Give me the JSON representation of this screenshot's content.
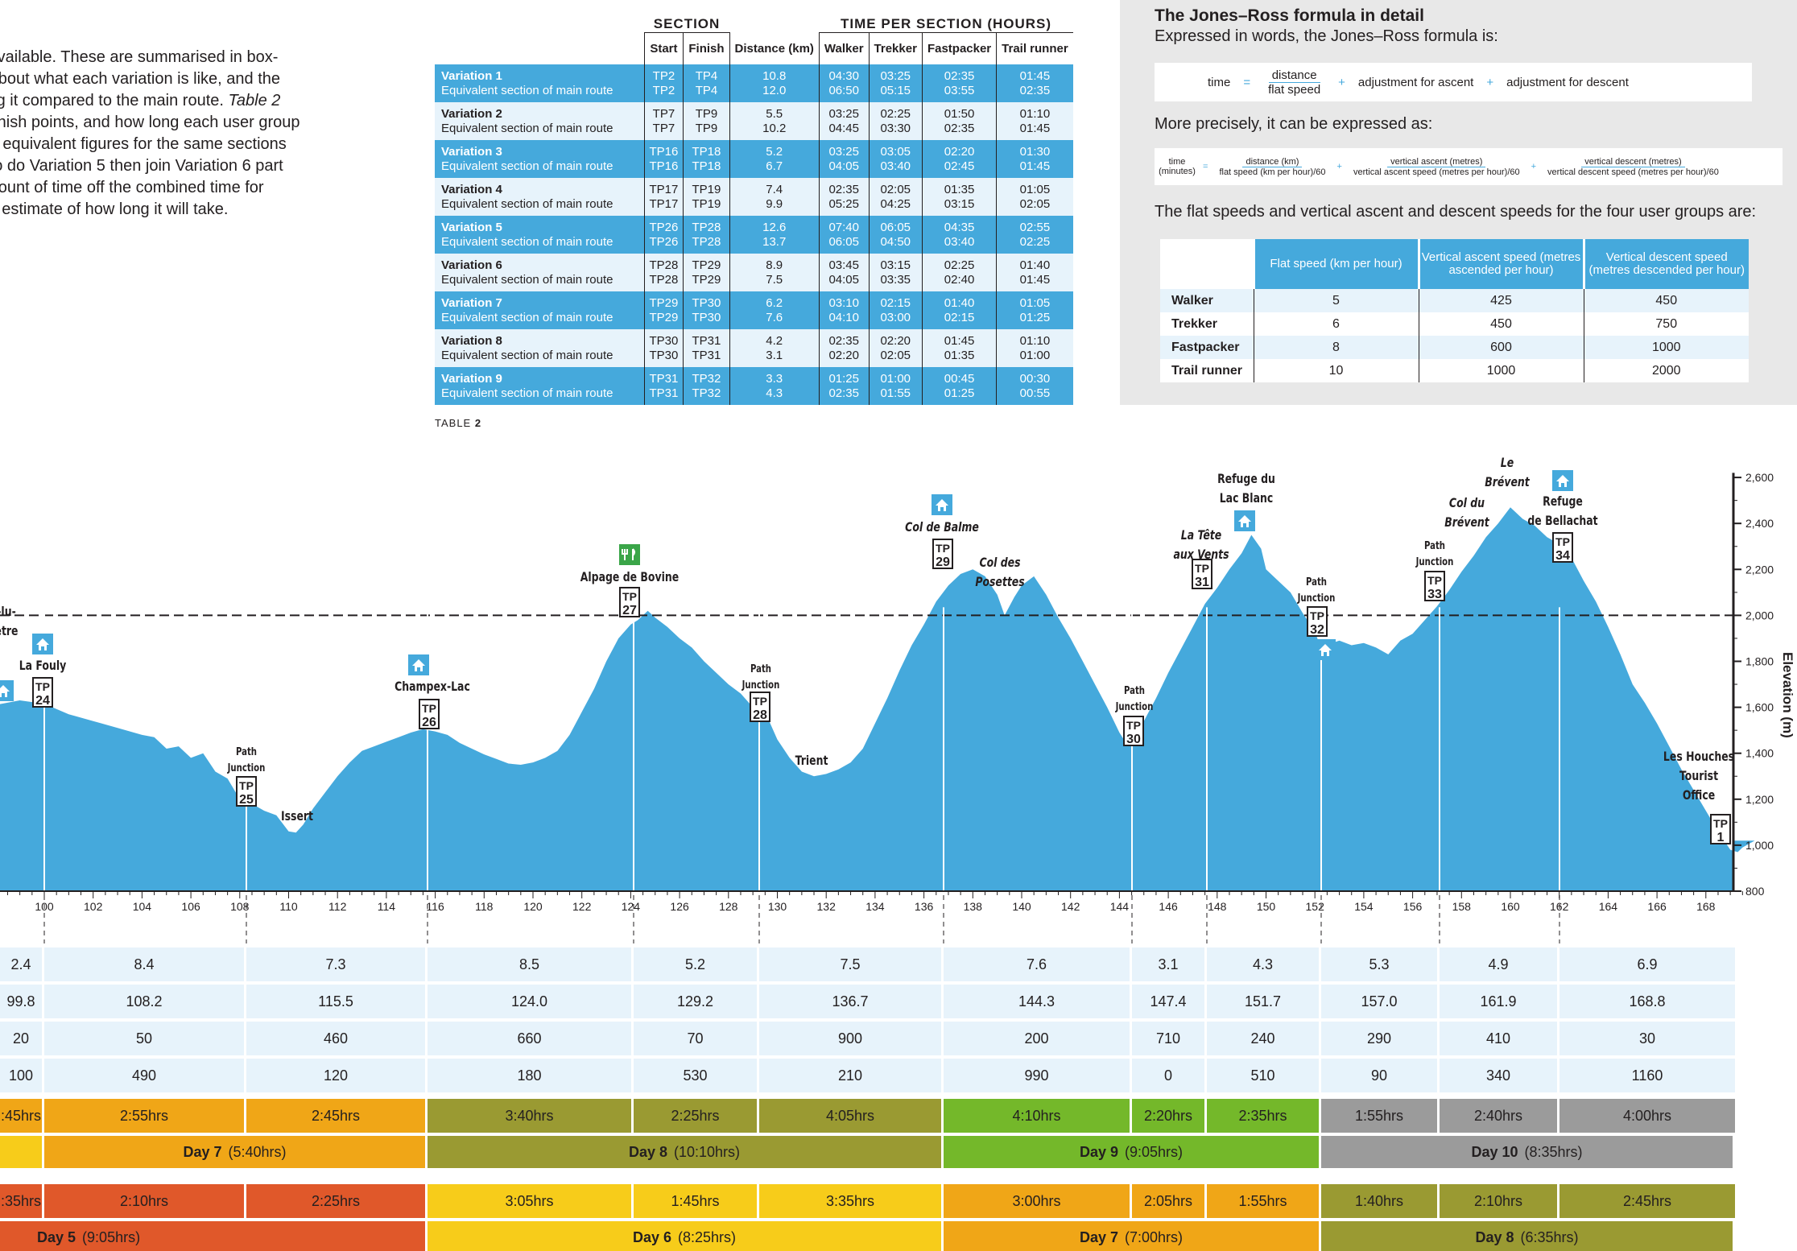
{
  "intro": {
    "lines": [
      {
        "text": "s available. These are summarised in box-"
      },
      {
        "text": "n about what each variation is like, and the"
      },
      {
        "text": "ving it compared to the main route. ",
        "it": "Table 2"
      },
      {
        "text": "d finish points, and how long each user group"
      },
      {
        "text": "the equivalent figures for the same sections"
      },
      {
        "text": "e to do Variation 5 then join Variation 6 part"
      },
      {
        "text": "amount of time off the combined time for"
      },
      {
        "text": "ble estimate of how long it will take."
      }
    ]
  },
  "table2": {
    "section_header": "SECTION",
    "time_header": "TIME PER SECTION (HOURS)",
    "cols": [
      "Start",
      "Finish",
      "Distance (km)",
      "Walker",
      "Trekker",
      "Fastpacker",
      "Trail runner"
    ],
    "rows": [
      {
        "name": "Variation 1",
        "sub": "Equivalent section of main route",
        "start": [
          "TP2",
          "TP2"
        ],
        "finish": [
          "TP4",
          "TP4"
        ],
        "dist": [
          "10.8",
          "12.0"
        ],
        "walker": [
          "04:30",
          "06:50"
        ],
        "trekker": [
          "03:25",
          "05:15"
        ],
        "fast": [
          "02:35",
          "03:55"
        ],
        "runner": [
          "01:45",
          "02:35"
        ]
      },
      {
        "name": "Variation 2",
        "sub": "Equivalent section of main route",
        "start": [
          "TP7",
          "TP7"
        ],
        "finish": [
          "TP9",
          "TP9"
        ],
        "dist": [
          "5.5",
          "10.2"
        ],
        "walker": [
          "03:25",
          "04:45"
        ],
        "trekker": [
          "02:25",
          "03:30"
        ],
        "fast": [
          "01:50",
          "02:35"
        ],
        "runner": [
          "01:10",
          "01:45"
        ]
      },
      {
        "name": "Variation 3",
        "sub": "Equivalent section of main route",
        "start": [
          "TP16",
          "TP16"
        ],
        "finish": [
          "TP18",
          "TP18"
        ],
        "dist": [
          "5.2",
          "6.7"
        ],
        "walker": [
          "03:25",
          "04:05"
        ],
        "trekker": [
          "03:05",
          "03:40"
        ],
        "fast": [
          "02:20",
          "02:45"
        ],
        "runner": [
          "01:30",
          "01:45"
        ]
      },
      {
        "name": "Variation 4",
        "sub": "Equivalent section of main route",
        "start": [
          "TP17",
          "TP17"
        ],
        "finish": [
          "TP19",
          "TP19"
        ],
        "dist": [
          "7.4",
          "9.9"
        ],
        "walker": [
          "02:35",
          "05:25"
        ],
        "trekker": [
          "02:05",
          "04:25"
        ],
        "fast": [
          "01:35",
          "03:15"
        ],
        "runner": [
          "01:05",
          "02:05"
        ]
      },
      {
        "name": "Variation 5",
        "sub": "Equivalent section of main route",
        "start": [
          "TP26",
          "TP26"
        ],
        "finish": [
          "TP28",
          "TP28"
        ],
        "dist": [
          "12.6",
          "13.7"
        ],
        "walker": [
          "07:40",
          "06:05"
        ],
        "trekker": [
          "06:05",
          "04:50"
        ],
        "fast": [
          "04:35",
          "03:40"
        ],
        "runner": [
          "02:55",
          "02:25"
        ]
      },
      {
        "name": "Variation 6",
        "sub": "Equivalent section of main route",
        "start": [
          "TP28",
          "TP28"
        ],
        "finish": [
          "TP29",
          "TP29"
        ],
        "dist": [
          "8.9",
          "7.5"
        ],
        "walker": [
          "03:45",
          "04:05"
        ],
        "trekker": [
          "03:15",
          "03:35"
        ],
        "fast": [
          "02:25",
          "02:40"
        ],
        "runner": [
          "01:40",
          "01:45"
        ]
      },
      {
        "name": "Variation 7",
        "sub": "Equivalent section of main route",
        "start": [
          "TP29",
          "TP29"
        ],
        "finish": [
          "TP30",
          "TP30"
        ],
        "dist": [
          "6.2",
          "7.6"
        ],
        "walker": [
          "03:10",
          "04:10"
        ],
        "trekker": [
          "02:15",
          "03:00"
        ],
        "fast": [
          "01:40",
          "02:15"
        ],
        "runner": [
          "01:05",
          "01:25"
        ]
      },
      {
        "name": "Variation 8",
        "sub": "Equivalent section of main route",
        "start": [
          "TP30",
          "TP30"
        ],
        "finish": [
          "TP31",
          "TP31"
        ],
        "dist": [
          "4.2",
          "3.1"
        ],
        "walker": [
          "02:35",
          "02:20"
        ],
        "trekker": [
          "02:20",
          "02:05"
        ],
        "fast": [
          "01:45",
          "01:35"
        ],
        "runner": [
          "01:10",
          "01:00"
        ]
      },
      {
        "name": "Variation 9",
        "sub": "Equivalent section of main route",
        "start": [
          "TP31",
          "TP31"
        ],
        "finish": [
          "TP32",
          "TP32"
        ],
        "dist": [
          "3.3",
          "4.3"
        ],
        "walker": [
          "01:25",
          "02:35"
        ],
        "trekker": [
          "01:00",
          "01:55"
        ],
        "fast": [
          "00:45",
          "01:25"
        ],
        "runner": [
          "00:30",
          "00:55"
        ]
      }
    ],
    "caption_a": "TABLE",
    "caption_b": "2"
  },
  "jones_ross": {
    "title": "The Jones–Ross formula in detail",
    "p1": "Expressed in words, the Jones–Ross formula is:",
    "f1": {
      "time": "time",
      "eq": "=",
      "num": "distance",
      "den": "flat speed",
      "plus": "+",
      "asc": "adjustment for ascent",
      "desc": "adjustment for descent"
    },
    "p2": "More precisely, it can be expressed as:",
    "f2": {
      "lhs": "time (minutes)",
      "t1n": "distance (km)",
      "t1d": "flat speed (km per hour)/60",
      "t2n": "vertical ascent (metres)",
      "t2d": "vertical ascent speed (metres per hour)/60",
      "t3n": "vertical descent (metres)",
      "t3d": "vertical descent speed (metres per hour)/60"
    },
    "p3": "The flat speeds and vertical ascent and descent speeds for the four user groups are:",
    "speeds": {
      "headers": [
        "Flat speed (km per hour)",
        "Vertical ascent speed (metres ascended per hour)",
        "Vertical descent speed (metres descended per hour)"
      ],
      "rows": [
        {
          "label": "Walker",
          "v": [
            "5",
            "425",
            "450"
          ]
        },
        {
          "label": "Trekker",
          "v": [
            "6",
            "450",
            "750"
          ]
        },
        {
          "label": "Fastpacker",
          "v": [
            "8",
            "600",
            "1000"
          ]
        },
        {
          "label": "Trail runner",
          "v": [
            "10",
            "1000",
            "2000"
          ]
        }
      ]
    }
  },
  "profile": {
    "x_ticks": [
      "8",
      "100",
      "102",
      "104",
      "106",
      "108",
      "110",
      "112",
      "114",
      "116",
      "118",
      "120",
      "122",
      "124",
      "126",
      "128",
      "130",
      "132",
      "134",
      "136",
      "138",
      "140",
      "142",
      "144",
      "146",
      "148",
      "150",
      "152",
      "154",
      "156",
      "158",
      "160",
      "162",
      "164",
      "166",
      "168"
    ],
    "y_ticks": [
      "800",
      "1,000",
      "1,200",
      "1,400",
      "1,600",
      "1,800",
      "2,000",
      "2,200",
      "2,400",
      "2,600"
    ],
    "y_label": "Elevation (m)",
    "labels": [
      {
        "id": "l1",
        "lines": [
          "-lu-",
          "ètre"
        ]
      },
      {
        "id": "l2",
        "lines": [
          "La Fouly"
        ],
        "tp": "24"
      },
      {
        "id": "l3",
        "lines": [
          "Path",
          "Junction"
        ],
        "tp": "25"
      },
      {
        "id": "l4",
        "lines": [
          "Issert"
        ]
      },
      {
        "id": "l5",
        "lines": [
          "Champex-Lac"
        ],
        "tp": "26"
      },
      {
        "id": "l6",
        "lines": [
          "Alpage de Bovine"
        ],
        "tp": "27"
      },
      {
        "id": "l7",
        "lines": [
          "Path",
          "Junction"
        ],
        "tp": "28"
      },
      {
        "id": "l8",
        "lines": [
          "Trient"
        ]
      },
      {
        "id": "l9",
        "lines": [
          "Col de Balme"
        ],
        "tp": "29"
      },
      {
        "id": "l10",
        "lines": [
          "Col des",
          "Posettes"
        ]
      },
      {
        "id": "l11",
        "lines": [
          "Path",
          "Junction"
        ],
        "tp": "30"
      },
      {
        "id": "l12",
        "lines": [
          "La Tête",
          "aux Vents"
        ],
        "tp": "31"
      },
      {
        "id": "l13",
        "lines": [
          "Refuge du",
          "Lac Blanc"
        ]
      },
      {
        "id": "l14",
        "lines": [
          "Path",
          "Junction"
        ],
        "tp": "32"
      },
      {
        "id": "l15",
        "lines": [
          "Path",
          "Junction"
        ],
        "tp": "33"
      },
      {
        "id": "l16",
        "lines": [
          "Col du",
          "Brévent"
        ]
      },
      {
        "id": "l17",
        "lines": [
          "Le",
          "Brévent"
        ]
      },
      {
        "id": "l18",
        "lines": [
          "Refuge",
          "de Bellachat"
        ],
        "tp": "34"
      },
      {
        "id": "l19",
        "lines": [
          "Les Houches",
          "Tourist",
          "Office"
        ],
        "tp": "1"
      }
    ]
  },
  "segments": {
    "distance": [
      "2.4",
      "8.4",
      "7.3",
      "8.5",
      "5.2",
      "7.5",
      "7.6",
      "3.1",
      "4.3",
      "5.3",
      "4.9",
      "6.9"
    ],
    "cumulative": [
      "99.8",
      "108.2",
      "115.5",
      "124.0",
      "129.2",
      "136.7",
      "144.3",
      "147.4",
      "151.7",
      "157.0",
      "161.9",
      "168.8"
    ],
    "ascent": [
      "20",
      "50",
      "460",
      "660",
      "70",
      "900",
      "200",
      "710",
      "240",
      "290",
      "410",
      "30"
    ],
    "descent": [
      "100",
      "490",
      "120",
      "180",
      "530",
      "210",
      "990",
      "0",
      "510",
      "90",
      "340",
      "1160"
    ],
    "walk_times": [
      ":45hrs",
      "2:55hrs",
      "2:45hrs",
      "3:40hrs",
      "2:25hrs",
      "4:05hrs",
      "4:10hrs",
      "2:20hrs",
      "2:35hrs",
      "1:55hrs",
      "2:40hrs",
      "4:00hrs"
    ],
    "walk_days": [
      {
        "name": "Day 7",
        "hrs": "(5:40hrs)"
      },
      {
        "name": "Day 8",
        "hrs": "(10:10hrs)"
      },
      {
        "name": "Day 9",
        "hrs": "(9:05hrs)"
      },
      {
        "name": "Day 10",
        "hrs": "(8:35hrs)"
      }
    ],
    "trek_times": [
      ":35hrs",
      "2:10hrs",
      "2:25hrs",
      "3:05hrs",
      "1:45hrs",
      "3:35hrs",
      "3:00hrs",
      "2:05hrs",
      "1:55hrs",
      "1:40hrs",
      "2:10hrs",
      "2:45hrs"
    ],
    "trek_days": [
      {
        "name": "Day 5",
        "hrs": "(9:05hrs)"
      },
      {
        "name": "Day 6",
        "hrs": "(8:25hrs)"
      },
      {
        "name": "Day 7",
        "hrs": "(7:00hrs)"
      },
      {
        "name": "Day 8",
        "hrs": "(6:35hrs)"
      }
    ]
  },
  "colors": {
    "blue": "#45a9dc",
    "light": "#e7f3fb",
    "orange": "#f0a617",
    "olive": "#9a9a32",
    "green": "#74b82a",
    "grey": "#9b9b9b",
    "red": "#e0582a",
    "yellow": "#f7cc1a"
  }
}
